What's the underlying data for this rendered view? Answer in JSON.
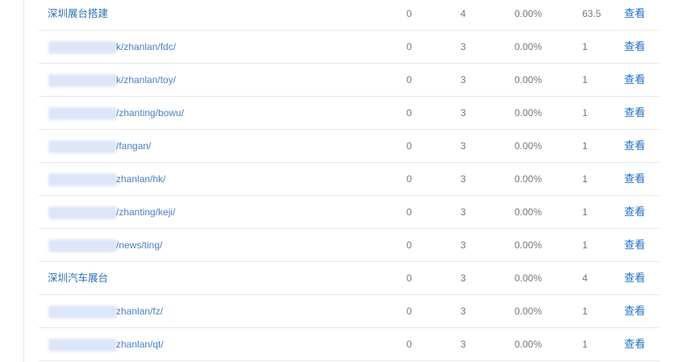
{
  "view_label": "查看",
  "rows": [
    {
      "name": "深圳展台搭建",
      "masked": false,
      "c1": "0",
      "c2": "4",
      "c3": "0.00%",
      "c4": "63.5"
    },
    {
      "name": "k/zhanlan/fdc/",
      "masked": true,
      "c1": "0",
      "c2": "3",
      "c3": "0.00%",
      "c4": "1"
    },
    {
      "name": "k/zhanlan/toy/",
      "masked": true,
      "c1": "0",
      "c2": "3",
      "c3": "0.00%",
      "c4": "1"
    },
    {
      "name": "/zhanting/bowu/",
      "masked": true,
      "c1": "0",
      "c2": "3",
      "c3": "0.00%",
      "c4": "1"
    },
    {
      "name": "/fangan/",
      "masked": true,
      "c1": "0",
      "c2": "3",
      "c3": "0.00%",
      "c4": "1"
    },
    {
      "name": "zhanlan/hk/",
      "masked": true,
      "c1": "0",
      "c2": "3",
      "c3": "0.00%",
      "c4": "1"
    },
    {
      "name": "/zhanting/keji/",
      "masked": true,
      "c1": "0",
      "c2": "3",
      "c3": "0.00%",
      "c4": "1"
    },
    {
      "name": "/news/ting/",
      "masked": true,
      "c1": "0",
      "c2": "3",
      "c3": "0.00%",
      "c4": "1"
    },
    {
      "name": "深圳汽车展台",
      "masked": false,
      "c1": "0",
      "c2": "3",
      "c3": "0.00%",
      "c4": "4"
    },
    {
      "name": "zhanlan/fz/",
      "masked": true,
      "c1": "0",
      "c2": "3",
      "c3": "0.00%",
      "c4": "1"
    },
    {
      "name": "zhanlan/qt/",
      "masked": true,
      "c1": "0",
      "c2": "3",
      "c3": "0.00%",
      "c4": "1"
    }
  ]
}
